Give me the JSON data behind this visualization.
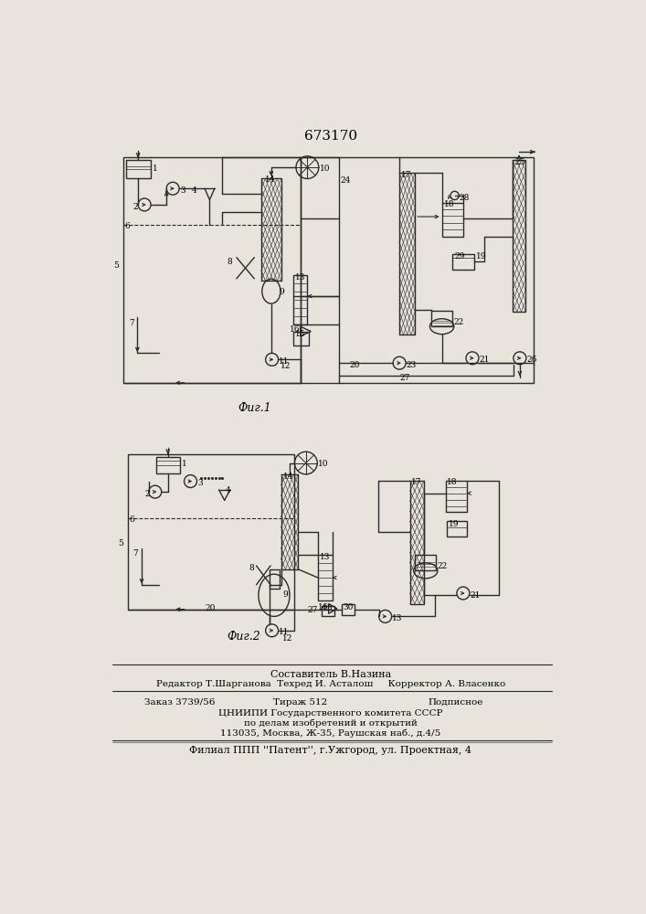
{
  "title": "673170",
  "fig1_caption": "Фиг.1",
  "fig2_caption": "Фиг.2",
  "bg_color": "#e8e4dc",
  "line_color": "#2a2a2a",
  "footer": {
    "line1": "Составитель В.Назина",
    "line2": "Редактор Т.Шарганова  Техред И. Асталош     Корректор А. Власенко",
    "order": "Заказ 3739/56",
    "tirazh": "Тираж 512",
    "podpisnoe": "Подписное",
    "org1": "ЦНИИПИ Государственного комитета СССР",
    "org2": "по делам изобретений и открытий",
    "addr": "113035, Москва, Ж-35, Раушская наб., д.4/5",
    "filial": "Филиал ППП ''Патент'', г.Ужгород, ул. Проектная, 4"
  }
}
